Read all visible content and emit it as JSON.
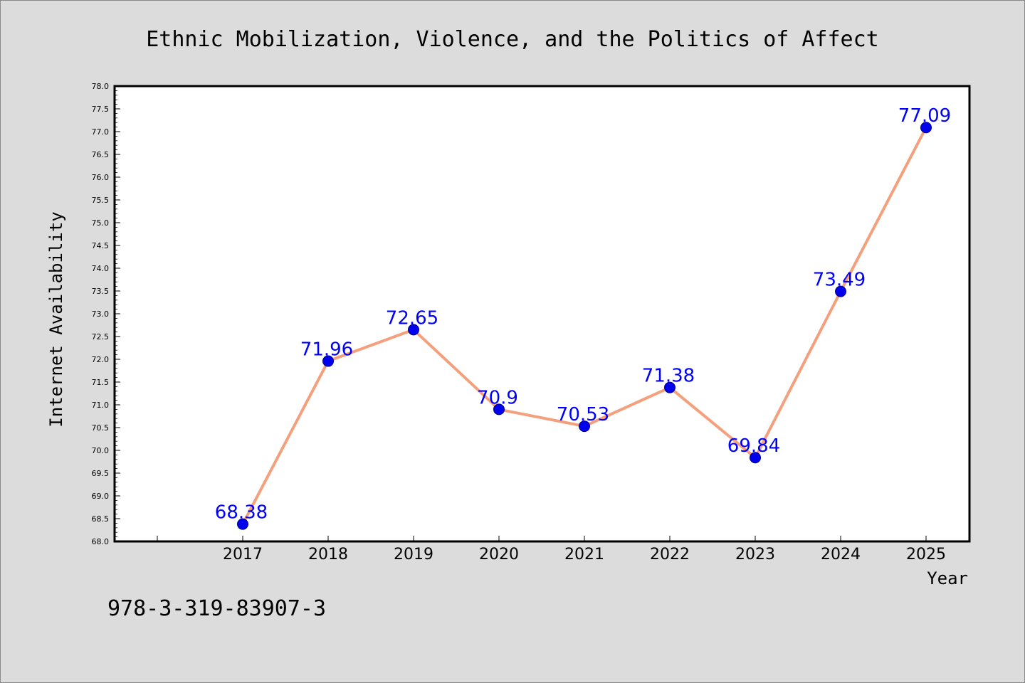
{
  "chart_data": {
    "type": "line",
    "title": "Ethnic Mobilization, Violence, and the Politics of Affect",
    "xlabel": "Year",
    "ylabel": "Internet Availability",
    "categories": [
      "2017",
      "2018",
      "2019",
      "2020",
      "2021",
      "2022",
      "2023",
      "2024",
      "2025"
    ],
    "series": [
      {
        "values": [
          68.38,
          71.96,
          72.65,
          70.9,
          70.53,
          71.38,
          69.84,
          73.49,
          77.09
        ],
        "data_labels": [
          "68.38",
          "71.96",
          "72.65",
          "70.9",
          "70.53",
          "71.38",
          "69.84",
          "73.49",
          "77.09"
        ]
      }
    ],
    "ylim": [
      68.0,
      78.0
    ],
    "yticks": [
      "68.0",
      "68.5",
      "69.0",
      "69.5",
      "70.0",
      "70.5",
      "71.0",
      "71.5",
      "72.0",
      "72.5",
      "73.0",
      "73.5",
      "74.0",
      "74.5",
      "75.0",
      "75.5",
      "76.0",
      "76.5",
      "77.0",
      "77.5",
      "78.0"
    ],
    "grid": false,
    "legend": "none"
  },
  "footer": {
    "isbn": "978-3-319-83907-3"
  },
  "colors": {
    "background": "#dcdcdc",
    "plot_background": "#ffffff",
    "line": "#f4a07c",
    "marker_fill": "#0000ee",
    "marker_edge": "#000080",
    "data_label": "#0000ff"
  }
}
